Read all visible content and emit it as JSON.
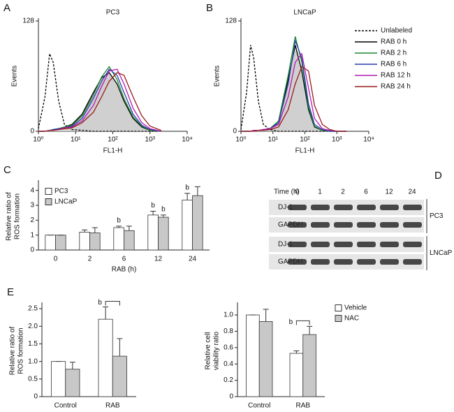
{
  "chart_data": [
    {
      "type": "line",
      "panel_label": "A",
      "title": "PC3",
      "xlabel": "FL1-H",
      "ylabel": [
        "Events"
      ],
      "xscale": "log",
      "xlim": [
        1,
        10000
      ],
      "xticks": [
        {
          "value": 1,
          "label": "10⁰"
        },
        {
          "value": 10,
          "label": "10¹"
        },
        {
          "value": 100,
          "label": "10²"
        },
        {
          "value": 1000,
          "label": "10³"
        },
        {
          "value": 10000,
          "label": "10⁴"
        }
      ],
      "ylim": [
        0,
        128
      ],
      "yticks": [
        0,
        128
      ],
      "x": [
        1,
        1.5,
        2,
        2.5,
        3.5,
        5,
        8,
        15,
        30,
        50,
        80,
        130,
        200,
        350,
        600,
        1000,
        2000
      ],
      "series": [
        {
          "color": "#000000",
          "dash": true,
          "values": [
            3,
            40,
            90,
            80,
            35,
            8,
            2,
            1,
            0,
            0,
            0,
            0,
            0,
            0,
            0,
            0,
            0
          ]
        },
        {
          "color": "#000000",
          "fill": "#d0d0d0",
          "values": [
            0,
            0,
            1,
            2,
            3,
            5,
            8,
            20,
            45,
            62,
            68,
            55,
            35,
            15,
            5,
            1,
            0
          ]
        },
        {
          "color": "#1a8a2a",
          "values": [
            0,
            0,
            1,
            2,
            3,
            5,
            7,
            18,
            42,
            63,
            75,
            60,
            38,
            17,
            6,
            1,
            0
          ]
        },
        {
          "color": "#2a3cb0",
          "values": [
            0,
            0,
            1,
            2,
            3,
            4,
            6,
            15,
            38,
            58,
            72,
            65,
            45,
            20,
            7,
            2,
            0
          ]
        },
        {
          "color": "#b01ab0",
          "values": [
            0,
            0,
            1,
            1,
            2,
            4,
            5,
            12,
            30,
            52,
            70,
            72,
            55,
            27,
            10,
            3,
            0
          ]
        },
        {
          "color": "#9a1a1a",
          "values": [
            0,
            0,
            1,
            1,
            2,
            3,
            4,
            10,
            22,
            40,
            58,
            68,
            65,
            40,
            18,
            6,
            1
          ]
        }
      ]
    },
    {
      "type": "line",
      "panel_label": "B",
      "title": "LNCaP",
      "xlabel": "FL1-H",
      "ylabel": [
        "Events"
      ],
      "xscale": "log",
      "legend": "upper right",
      "xlim": [
        1,
        10000
      ],
      "xticks": [
        {
          "value": 1,
          "label": "10⁰"
        },
        {
          "value": 10,
          "label": "10¹"
        },
        {
          "value": 100,
          "label": "10²"
        },
        {
          "value": 1000,
          "label": "10³"
        },
        {
          "value": 10000,
          "label": "10⁴"
        }
      ],
      "ylim": [
        0,
        128
      ],
      "yticks": [
        0,
        128
      ],
      "x": [
        1,
        1.5,
        2,
        2.5,
        3.5,
        5,
        8,
        15,
        30,
        50,
        80,
        130,
        200,
        350,
        600,
        1000,
        2000
      ],
      "series": [
        {
          "name": "Unlabeled",
          "color": "#000000",
          "dash": true,
          "values": [
            2,
            45,
            100,
            85,
            35,
            8,
            2,
            0,
            0,
            0,
            0,
            0,
            0,
            0,
            0,
            0,
            0
          ]
        },
        {
          "name": "RAB 0 h",
          "color": "#000000",
          "fill": "#d0d0d0",
          "values": [
            0,
            0,
            0,
            1,
            1,
            2,
            3,
            10,
            60,
            100,
            70,
            25,
            5,
            1,
            0,
            0,
            0
          ]
        },
        {
          "name": "RAB 2 h",
          "color": "#1a8a2a",
          "values": [
            0,
            0,
            0,
            1,
            1,
            2,
            3,
            12,
            65,
            110,
            80,
            28,
            6,
            1,
            0,
            0,
            0
          ]
        },
        {
          "name": "RAB 6 h",
          "color": "#2a3cb0",
          "values": [
            0,
            0,
            0,
            1,
            1,
            2,
            3,
            10,
            55,
            105,
            85,
            32,
            8,
            2,
            0,
            0,
            0
          ]
        },
        {
          "name": "RAB 12 h",
          "color": "#b01ab0",
          "values": [
            0,
            0,
            0,
            1,
            1,
            2,
            3,
            8,
            40,
            80,
            90,
            50,
            15,
            3,
            1,
            0,
            0
          ]
        },
        {
          "name": "RAB 24 h",
          "color": "#9a1a1a",
          "values": [
            0,
            0,
            0,
            0,
            1,
            1,
            2,
            5,
            25,
            55,
            75,
            70,
            30,
            8,
            2,
            0,
            0
          ]
        }
      ]
    },
    {
      "type": "bar",
      "panel_label": "C",
      "xlabel": "RAB (h)",
      "ylabel": [
        "Relative ratio of",
        "ROS formation"
      ],
      "legend": "upper left",
      "categories": [
        "0",
        "2",
        "6",
        "12",
        "24"
      ],
      "ylim": [
        0,
        4.5
      ],
      "yticks": [
        0,
        1,
        2,
        3,
        4
      ],
      "series": [
        {
          "name": "PC3",
          "color": "#ffffff",
          "values": [
            1,
            1.2,
            1.5,
            2.35,
            3.35
          ],
          "errors": [
            0,
            0.15,
            0.1,
            0.25,
            0.45
          ],
          "annotations": [
            null,
            null,
            "b",
            "b",
            "b"
          ]
        },
        {
          "name": "LNCaP",
          "color": "#c8c8c8",
          "values": [
            1,
            1.15,
            1.3,
            2.2,
            3.65
          ],
          "errors": [
            0,
            0.35,
            0.3,
            0.15,
            0.6
          ],
          "annotations": [
            null,
            null,
            null,
            "b",
            null
          ]
        }
      ]
    },
    {
      "type": "bar",
      "panel_label": "E",
      "ylabel": [
        "Relative ratio of",
        "ROS formation"
      ],
      "bracket_label": "b",
      "categories": [
        "Control",
        "RAB"
      ],
      "ylim": [
        0,
        2.6
      ],
      "yticks": [
        0,
        0.5,
        {
          "value": 1,
          "label": "1.0"
        },
        1.5,
        {
          "value": 2,
          "label": "2.0"
        },
        2.5
      ],
      "series": [
        {
          "color": "#ffffff",
          "values": [
            1,
            2.2
          ],
          "errors": [
            0,
            0.35
          ]
        },
        {
          "color": "#c8c8c8",
          "values": [
            0.78,
            1.15
          ],
          "errors": [
            0.2,
            0.5
          ]
        }
      ]
    },
    {
      "type": "bar",
      "ylabel": [
        "Relative cell",
        "viability ratio"
      ],
      "legend": "right outside",
      "bracket_label": "b",
      "categories": [
        "Control",
        "RAB"
      ],
      "ylim": [
        0,
        1.12
      ],
      "yticks": [
        0,
        0.2,
        0.4,
        0.6,
        0.8,
        {
          "value": 1,
          "label": "1.0"
        }
      ],
      "series": [
        {
          "name": "Vehicle",
          "color": "#ffffff",
          "values": [
            1,
            0.53
          ],
          "errors": [
            0,
            0.03
          ]
        },
        {
          "name": "NAC",
          "color": "#c8c8c8",
          "values": [
            0.92,
            0.76
          ],
          "errors": [
            0.15,
            0.1
          ]
        }
      ]
    }
  ],
  "blot": {
    "panel_label": "D",
    "time_label": "Time (h)",
    "times": [
      "0",
      "1",
      "2",
      "6",
      "12",
      "24"
    ],
    "rows": [
      "DJ-1",
      "GAPDH",
      "DJ-1",
      "GAPDH"
    ],
    "groups": [
      "PC3",
      "LNCaP"
    ]
  }
}
